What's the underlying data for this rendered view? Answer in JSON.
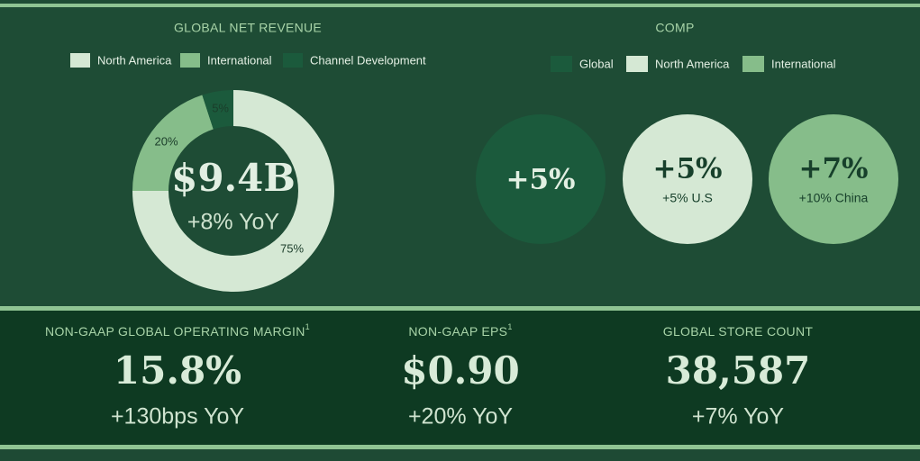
{
  "chart_data": {
    "type": "pie",
    "title": "GLOBAL NET REVENUE",
    "categories": [
      "North America",
      "International",
      "Channel Development"
    ],
    "values": [
      75,
      20,
      5
    ],
    "value_labels": [
      "75%",
      "20%",
      "5%"
    ],
    "colors": [
      "#d5e8d4",
      "#86bd8a",
      "#1b5a3c"
    ],
    "center_label": "$9.4B",
    "center_sublabel": "+8% YoY"
  },
  "comp": {
    "title": "COMP",
    "legend": [
      {
        "name": "Global",
        "color": "#1b5a3c"
      },
      {
        "name": "North America",
        "color": "#d5e8d4"
      },
      {
        "name": "International",
        "color": "#86bd8a"
      }
    ],
    "circles": [
      {
        "value": "+5%"
      },
      {
        "value": "+5%",
        "sublabel": "+5% U.S"
      },
      {
        "value": "+7%",
        "sublabel": "+10% China"
      }
    ]
  },
  "metrics": [
    {
      "title": "NON-GAAP GLOBAL OPERATING MARGIN",
      "note": "1",
      "value": "15.8%",
      "change": "+130bps YoY"
    },
    {
      "title": "NON-GAAP EPS",
      "note": "1",
      "value": "$0.90",
      "change": "+20% YoY"
    },
    {
      "title": "GLOBAL STORE COUNT",
      "value": "38,587",
      "change": "+7% YoY"
    }
  ]
}
